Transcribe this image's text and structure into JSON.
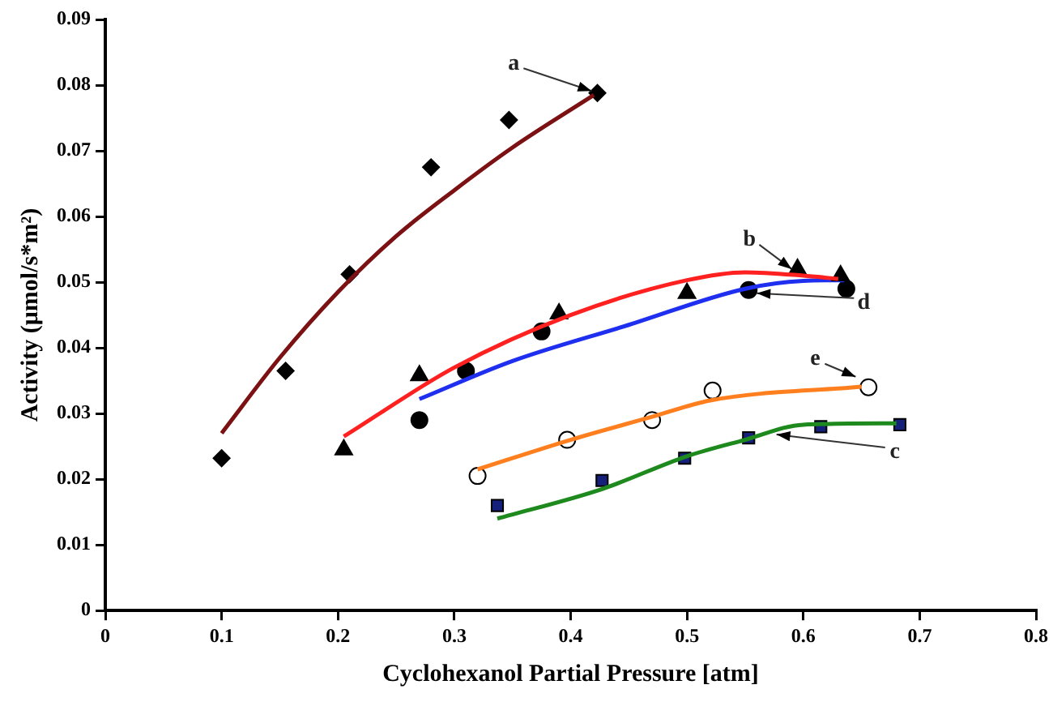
{
  "chart_data": {
    "type": "scatter",
    "xlabel": "Cyclohexanol Partial Pressure [atm]",
    "ylabel": "Activity (μmol/s*m²)",
    "xlim": [
      0,
      0.8
    ],
    "xticks": [
      0,
      0.1,
      0.2,
      0.3,
      0.4,
      0.5,
      0.6,
      0.7,
      0.8
    ],
    "ylim": [
      0,
      0.09
    ],
    "yticks": [
      0,
      0.01,
      0.02,
      0.03,
      0.04,
      0.05,
      0.06,
      0.07,
      0.08,
      0.09
    ],
    "grid": false,
    "legend": false,
    "series": [
      {
        "type": "line",
        "marker": "none",
        "color": "#7b1113",
        "x": [
          0.1,
          0.15,
          0.2,
          0.25,
          0.3,
          0.35,
          0.42
        ],
        "values": [
          0.027,
          0.0385,
          0.0485,
          0.057,
          0.064,
          0.0705,
          0.0785
        ]
      },
      {
        "type": "scatter",
        "marker": "diamond",
        "color": "#000000",
        "x": [
          0.1,
          0.155,
          0.21,
          0.28,
          0.347,
          0.423
        ],
        "values": [
          0.0232,
          0.0365,
          0.0512,
          0.0675,
          0.0747,
          0.0788
        ]
      },
      {
        "type": "line",
        "marker": "none",
        "color": "#ff2020",
        "x": [
          0.205,
          0.3,
          0.4,
          0.5,
          0.55,
          0.6,
          0.63
        ],
        "values": [
          0.0265,
          0.037,
          0.045,
          0.0503,
          0.0515,
          0.051,
          0.0505
        ]
      },
      {
        "type": "scatter",
        "marker": "triangle",
        "color": "#000000",
        "x": [
          0.205,
          0.27,
          0.39,
          0.5,
          0.595,
          0.632
        ],
        "values": [
          0.0245,
          0.0358,
          0.0452,
          0.0483,
          0.052,
          0.051
        ]
      },
      {
        "type": "line",
        "marker": "none",
        "color": "#1f2ff0",
        "x": [
          0.27,
          0.35,
          0.45,
          0.55,
          0.6,
          0.635
        ],
        "values": [
          0.0322,
          0.038,
          0.0435,
          0.049,
          0.0502,
          0.0503
        ]
      },
      {
        "type": "scatter",
        "marker": "circle",
        "color": "#000000",
        "x": [
          0.27,
          0.31,
          0.375,
          0.553,
          0.637
        ],
        "values": [
          0.029,
          0.0365,
          0.0425,
          0.0488,
          0.049
        ]
      },
      {
        "type": "line",
        "marker": "none",
        "color": "#ff7f1e",
        "x": [
          0.32,
          0.4,
          0.47,
          0.52,
          0.65
        ],
        "values": [
          0.0215,
          0.026,
          0.0295,
          0.032,
          0.0341
        ]
      },
      {
        "type": "scatter",
        "marker": "circle",
        "color": "#ffffff",
        "x": [
          0.32,
          0.397,
          0.47,
          0.522,
          0.656
        ],
        "values": [
          0.0205,
          0.026,
          0.029,
          0.0335,
          0.034
        ]
      },
      {
        "type": "line",
        "marker": "none",
        "color": "#1e8a1e",
        "x": [
          0.337,
          0.427,
          0.5,
          0.55,
          0.6,
          0.68
        ],
        "values": [
          0.014,
          0.0185,
          0.0235,
          0.026,
          0.0283,
          0.0285
        ]
      },
      {
        "type": "scatter",
        "marker": "square",
        "color": "#14207a",
        "x": [
          0.337,
          0.427,
          0.498,
          0.553,
          0.615,
          0.683
        ],
        "values": [
          0.016,
          0.0198,
          0.0232,
          0.0263,
          0.028,
          0.0283
        ]
      }
    ],
    "annotations": [
      {
        "text": "a",
        "x": 0.418,
        "y": 0.0791
      },
      {
        "text": "b",
        "x": 0.59,
        "y": 0.052
      },
      {
        "text": "d",
        "x": 0.56,
        "y": 0.0483
      },
      {
        "text": "e",
        "x": 0.645,
        "y": 0.0356
      },
      {
        "text": "c",
        "x": 0.577,
        "y": 0.0268
      }
    ]
  }
}
